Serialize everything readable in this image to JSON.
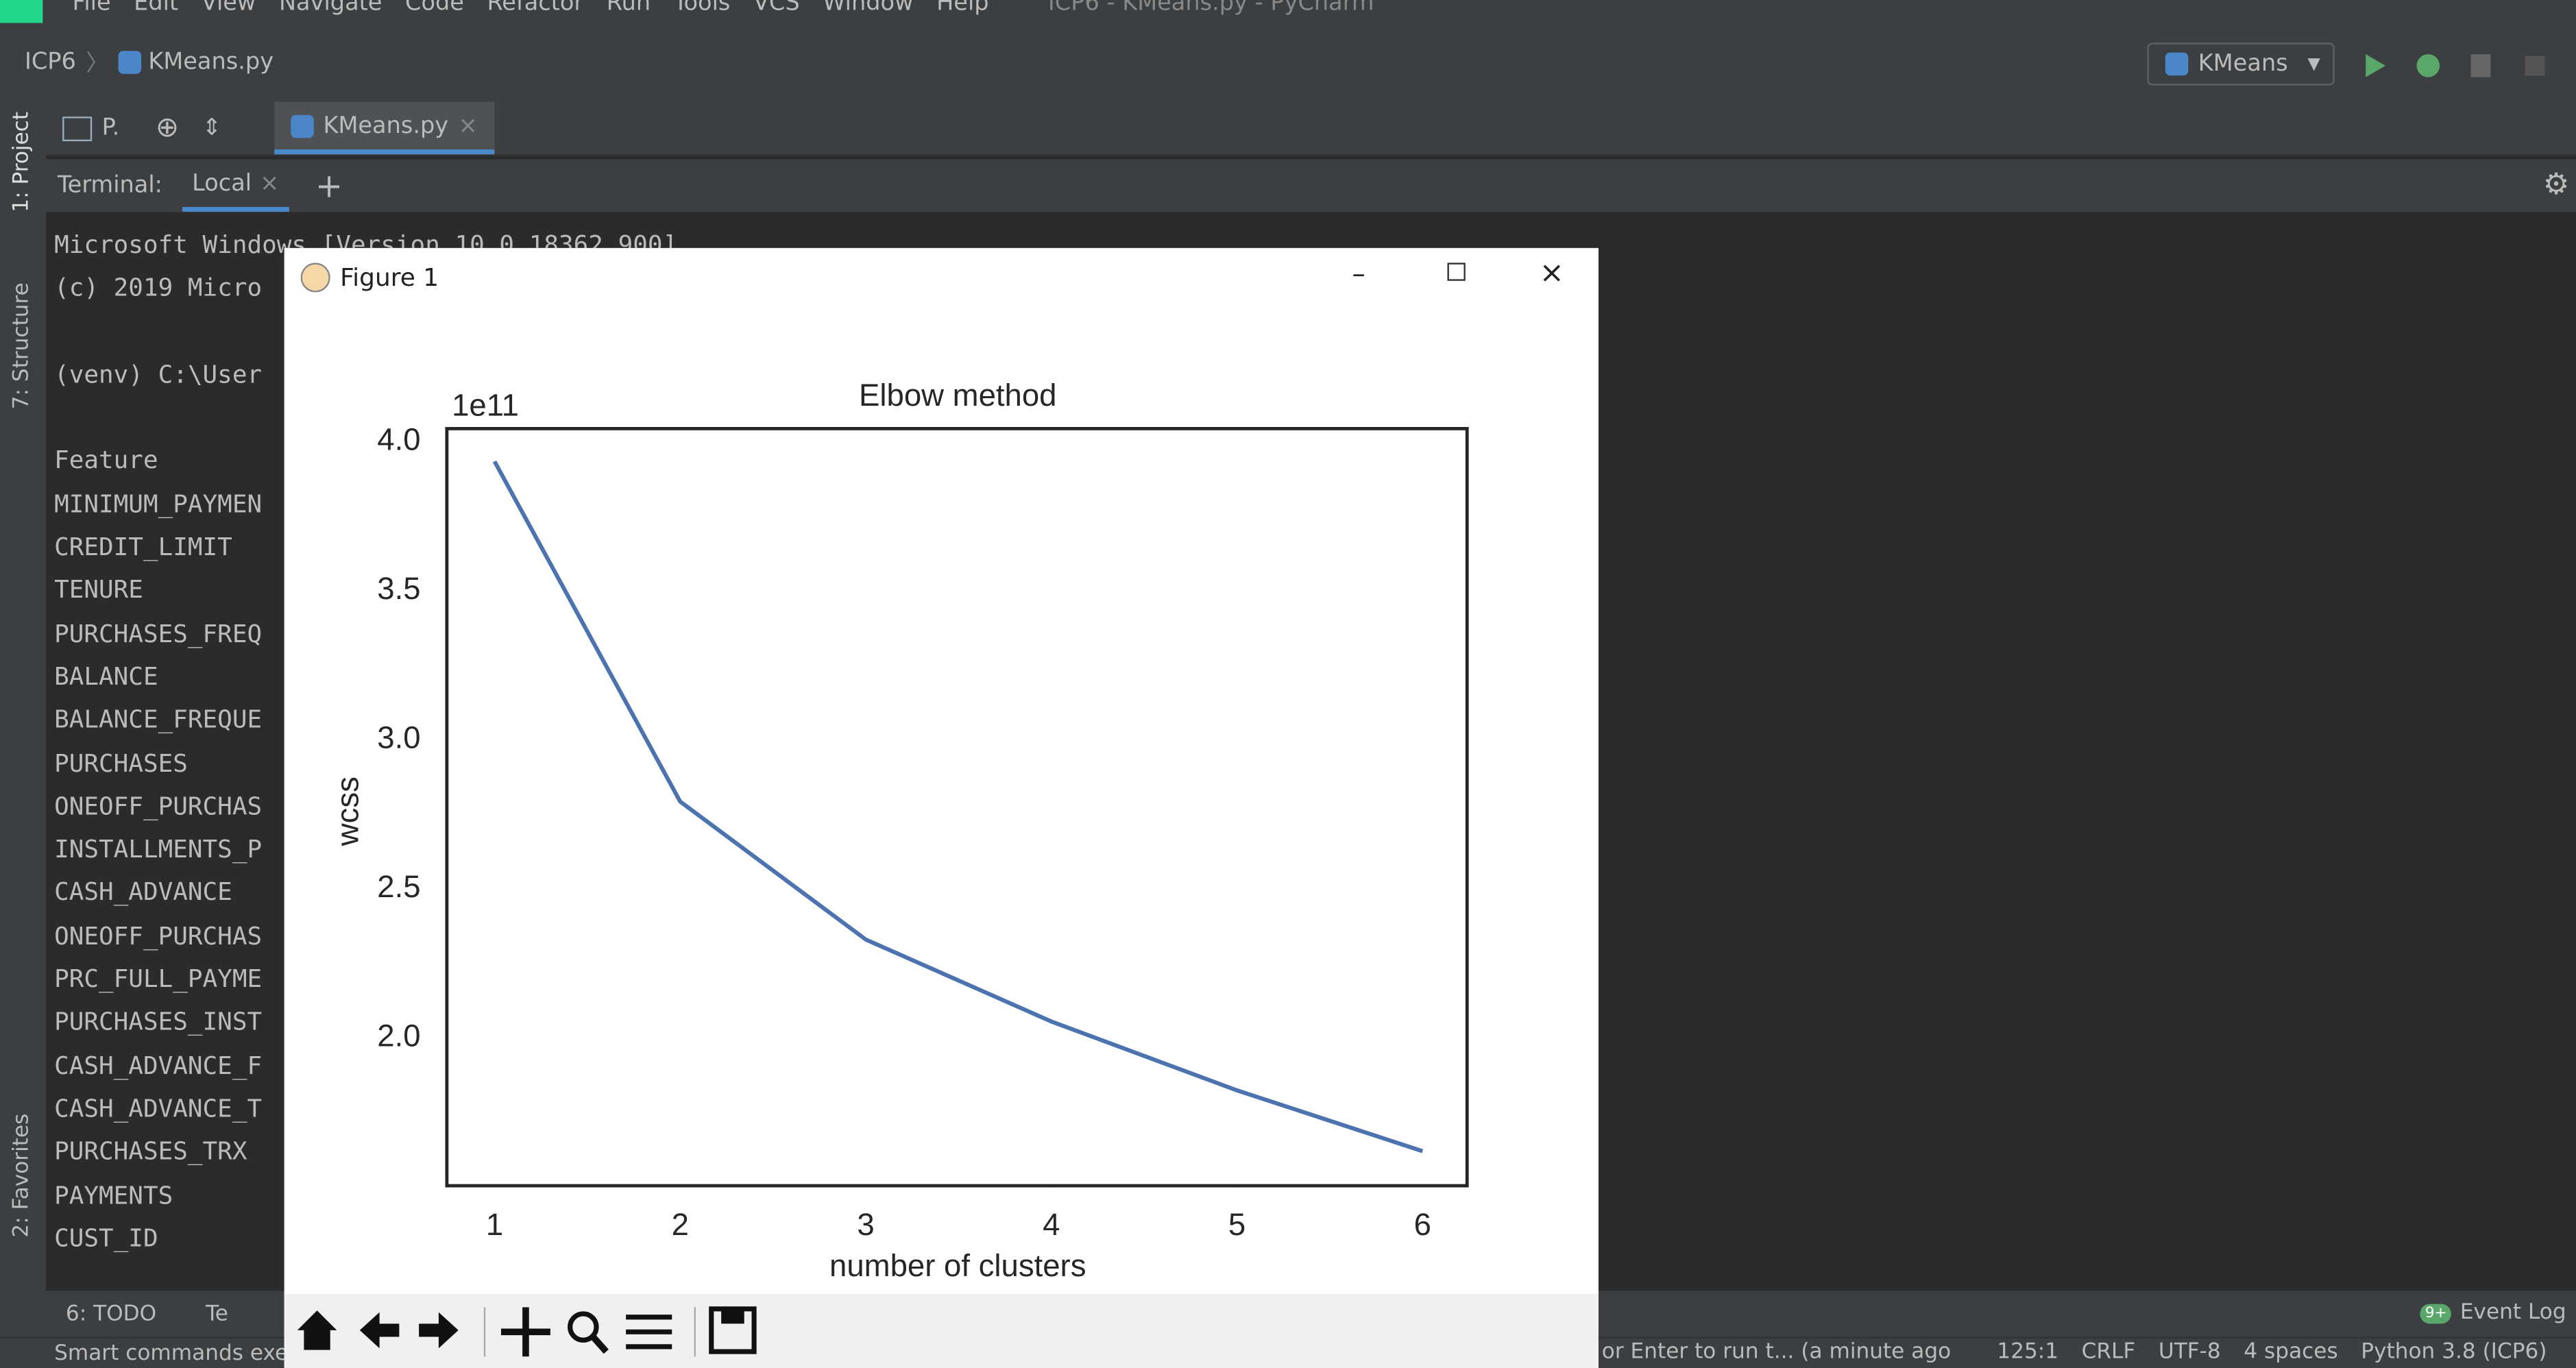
{
  "window": {
    "title": "ICP6 - KMeans.py - PyCharm",
    "menu": [
      "File",
      "Edit",
      "View",
      "Navigate",
      "Code",
      "Refactor",
      "Run",
      "Tools",
      "VCS",
      "Window",
      "Help"
    ]
  },
  "navbar": {
    "breadcrumbs": [
      "ICP6",
      "KMeans.py"
    ],
    "run_config": "KMeans"
  },
  "project_tool": "P.",
  "editor_tab": "KMeans.py",
  "side_tabs": [
    "1: Project",
    "7: Structure",
    "2: Favorites"
  ],
  "terminal": {
    "label": "Terminal:",
    "tab": "Local",
    "lines": [
      "Microsoft Windows [Version 10.0.18362.900]",
      "(c) 2019 Micro",
      "",
      "(venv) C:\\User",
      "",
      "Feature",
      "MINIMUM_PAYMEN",
      "CREDIT_LIMIT",
      "TENURE",
      "PURCHASES_FREQ",
      "BALANCE",
      "BALANCE_FREQUE",
      "PURCHASES",
      "ONEOFF_PURCHAS",
      "INSTALLMENTS_P",
      "CASH_ADVANCE",
      "ONEOFF_PURCHAS",
      "PRC_FULL_PAYME",
      "PURCHASES_INST",
      "CASH_ADVANCE_F",
      "CASH_ADVANCE_T",
      "PURCHASES_TRX",
      "PAYMENTS",
      "CUST_ID"
    ]
  },
  "bottom_tabs": [
    "6: TODO",
    "Te"
  ],
  "event_log": {
    "badge": "9+",
    "label": "Event Log"
  },
  "status_bar": {
    "message": "Smart commands exe",
    "hint": "or Enter to run t... (a minute ago",
    "items": [
      "125:1",
      "CRLF",
      "UTF-8",
      "4 spaces",
      "Python 3.8 (ICP6)"
    ]
  },
  "figure": {
    "title": "Figure 1"
  },
  "chart_data": {
    "type": "line",
    "title": "Elbow method",
    "xlabel": "number of clusters",
    "ylabel": "wcss",
    "y_offset_label": "1e11",
    "x": [
      1,
      2,
      3,
      4,
      5,
      6
    ],
    "values": [
      3.934,
      2.793,
      2.33,
      2.055,
      1.824,
      1.62
    ],
    "color": "#4c72b0",
    "xlim": [
      0.743,
      6.24
    ],
    "ylim": [
      1.504,
      4.044
    ],
    "xticks": [
      1,
      2,
      3,
      4,
      5,
      6
    ],
    "yticks": [
      {
        "value": 2,
        "label": "2.0"
      },
      {
        "value": 2.5,
        "label": "2.5"
      },
      {
        "value": 3,
        "label": "3.0"
      },
      {
        "value": 3.5,
        "label": "3.5"
      },
      {
        "value": 4,
        "label": "4.0"
      }
    ]
  }
}
